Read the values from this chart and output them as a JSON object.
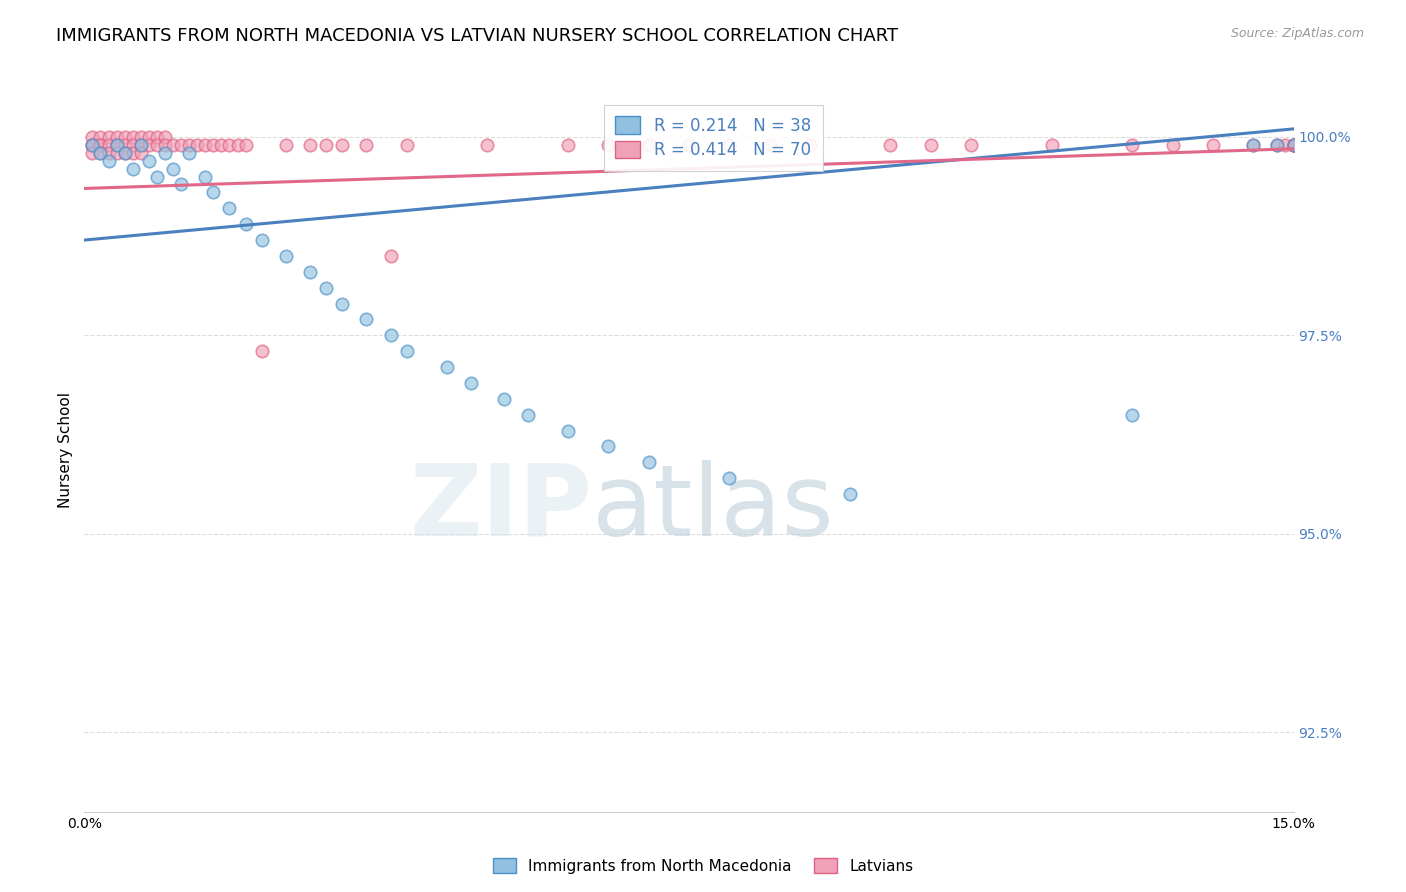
{
  "title": "IMMIGRANTS FROM NORTH MACEDONIA VS LATVIAN NURSERY SCHOOL CORRELATION CHART",
  "source_text": "Source: ZipAtlas.com",
  "ylabel": "Nursery School",
  "xlim": [
    0.0,
    0.15
  ],
  "ylim": [
    0.915,
    1.006
  ],
  "yticks": [
    0.925,
    0.95,
    0.975,
    1.0
  ],
  "ytick_labels": [
    "92.5%",
    "95.0%",
    "97.5%",
    "100.0%"
  ],
  "xticks": [
    0.0,
    0.025,
    0.05,
    0.075,
    0.1,
    0.125,
    0.15
  ],
  "xtick_labels": [
    "0.0%",
    "",
    "",
    "",
    "",
    "",
    "15.0%"
  ],
  "blue_color": "#92c0e0",
  "pink_color": "#f0a0b8",
  "blue_edge_color": "#4a90c8",
  "pink_edge_color": "#e06080",
  "blue_line_color": "#4a7fc0",
  "pink_line_color": "#e06888",
  "axis_label_color": "#4a7fc0",
  "legend_R_blue": "0.214",
  "legend_N_blue": "38",
  "legend_R_pink": "0.414",
  "legend_N_pink": "70",
  "blue_trend_x": [
    0.0,
    0.15
  ],
  "blue_trend_y": [
    0.987,
    1.001
  ],
  "pink_trend_x": [
    0.0,
    0.15
  ],
  "pink_trend_y": [
    0.9935,
    0.9985
  ],
  "watermark_zip": "ZIP",
  "watermark_atlas": "atlas",
  "background_color": "#ffffff",
  "grid_color": "#dddddd",
  "title_fontsize": 13,
  "label_fontsize": 11,
  "tick_fontsize": 10,
  "marker_size": 9,
  "blue_scatter_x": [
    0.001,
    0.002,
    0.003,
    0.004,
    0.005,
    0.006,
    0.007,
    0.008,
    0.009,
    0.01,
    0.011,
    0.012,
    0.013,
    0.015,
    0.016,
    0.018,
    0.02,
    0.022,
    0.025,
    0.028,
    0.03,
    0.032,
    0.035,
    0.038,
    0.04,
    0.045,
    0.048,
    0.052,
    0.055,
    0.06,
    0.065,
    0.07,
    0.08,
    0.095,
    0.13,
    0.145,
    0.148,
    0.15
  ],
  "blue_scatter_y": [
    0.999,
    0.998,
    0.997,
    0.999,
    0.998,
    0.996,
    0.999,
    0.997,
    0.995,
    0.998,
    0.996,
    0.994,
    0.998,
    0.995,
    0.993,
    0.991,
    0.989,
    0.987,
    0.985,
    0.983,
    0.981,
    0.979,
    0.977,
    0.975,
    0.973,
    0.971,
    0.969,
    0.967,
    0.965,
    0.963,
    0.961,
    0.959,
    0.957,
    0.955,
    0.965,
    0.999,
    0.999,
    0.999
  ],
  "pink_scatter_x": [
    0.001,
    0.001,
    0.001,
    0.001,
    0.002,
    0.002,
    0.002,
    0.002,
    0.003,
    0.003,
    0.003,
    0.004,
    0.004,
    0.004,
    0.005,
    0.005,
    0.005,
    0.006,
    0.006,
    0.006,
    0.007,
    0.007,
    0.007,
    0.008,
    0.008,
    0.009,
    0.009,
    0.01,
    0.01,
    0.011,
    0.012,
    0.013,
    0.014,
    0.015,
    0.016,
    0.017,
    0.018,
    0.019,
    0.02,
    0.022,
    0.025,
    0.028,
    0.03,
    0.032,
    0.035,
    0.038,
    0.04,
    0.05,
    0.06,
    0.065,
    0.07,
    0.075,
    0.08,
    0.085,
    0.09,
    0.1,
    0.105,
    0.11,
    0.12,
    0.13,
    0.135,
    0.14,
    0.145,
    0.148,
    0.149,
    0.15,
    0.15,
    0.15,
    0.15,
    0.15
  ],
  "pink_scatter_y": [
    1.0,
    0.999,
    0.999,
    0.998,
    1.0,
    0.999,
    0.999,
    0.998,
    1.0,
    0.999,
    0.998,
    1.0,
    0.999,
    0.998,
    1.0,
    0.999,
    0.998,
    1.0,
    0.999,
    0.998,
    1.0,
    0.999,
    0.998,
    1.0,
    0.999,
    1.0,
    0.999,
    1.0,
    0.999,
    0.999,
    0.999,
    0.999,
    0.999,
    0.999,
    0.999,
    0.999,
    0.999,
    0.999,
    0.999,
    0.973,
    0.999,
    0.999,
    0.999,
    0.999,
    0.999,
    0.985,
    0.999,
    0.999,
    0.999,
    0.999,
    0.999,
    0.999,
    0.999,
    0.999,
    0.999,
    0.999,
    0.999,
    0.999,
    0.999,
    0.999,
    0.999,
    0.999,
    0.999,
    0.999,
    0.999,
    0.999,
    0.999,
    0.999,
    0.999,
    0.999
  ]
}
